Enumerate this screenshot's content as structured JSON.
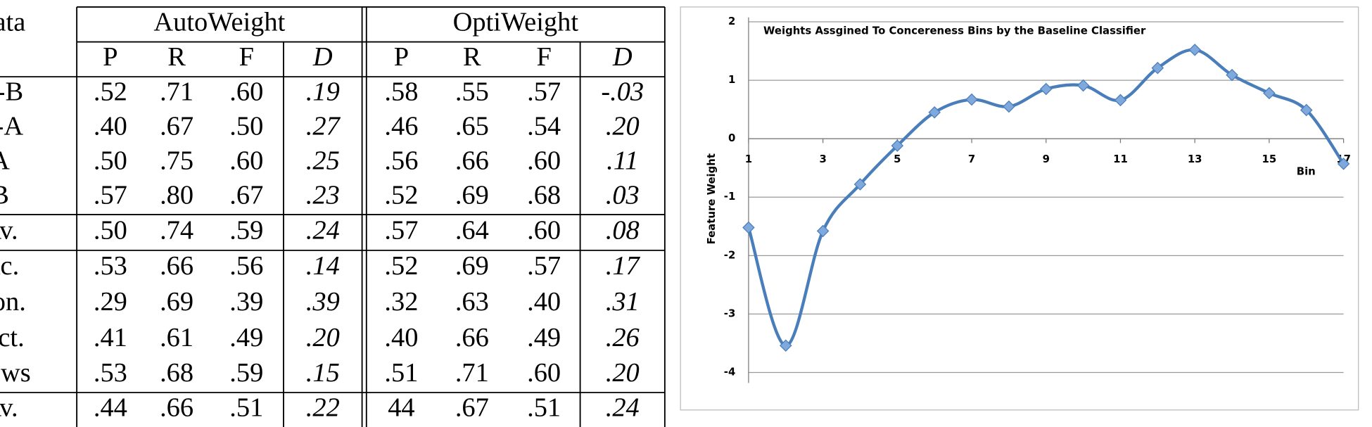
{
  "table": {
    "corner": "Data",
    "groups": [
      "AutoWeight",
      "OptiWeight"
    ],
    "subheaders": [
      "P",
      "R",
      "F",
      "D",
      "P",
      "R",
      "F",
      "D"
    ],
    "rows": [
      [
        "A-B",
        ".52",
        ".71",
        ".60",
        ".19",
        ".58",
        ".55",
        ".57",
        "-.03"
      ],
      [
        "B-A",
        ".40",
        ".67",
        ".50",
        ".27",
        ".46",
        ".65",
        ".54",
        ".20"
      ],
      [
        "A",
        ".50",
        ".75",
        ".60",
        ".25",
        ".56",
        ".66",
        ".60",
        ".11"
      ],
      [
        "B",
        ".57",
        ".80",
        ".67",
        ".23",
        ".52",
        ".69",
        ".68",
        ".03"
      ],
      [
        "Av.",
        ".50",
        ".74",
        ".59",
        ".24",
        ".57",
        ".64",
        ".60",
        ".08"
      ],
      [
        "Ac.",
        ".53",
        ".66",
        ".56",
        ".14",
        ".52",
        ".69",
        ".57",
        ".17"
      ],
      [
        "Con.",
        ".29",
        ".69",
        ".39",
        ".39",
        ".32",
        ".63",
        ".40",
        ".31"
      ],
      [
        "Fict.",
        ".41",
        ".61",
        ".49",
        ".20",
        ".40",
        ".66",
        ".49",
        ".26"
      ],
      [
        "News",
        ".53",
        ".68",
        ".59",
        ".15",
        ".51",
        ".71",
        ".60",
        ".20"
      ],
      [
        "Av.",
        ".44",
        ".66",
        ".51",
        ".22",
        "44",
        ".67",
        ".51",
        ".24"
      ]
    ]
  },
  "chart_data": {
    "type": "line",
    "title": "Weights Assgined To Concereness Bins by the Baseline Classifier",
    "x_label": "Bin",
    "y_label": "Feature Weight",
    "x": [
      1,
      2,
      3,
      4,
      5,
      6,
      7,
      8,
      9,
      10,
      11,
      12,
      13,
      14,
      15,
      16,
      17
    ],
    "values": [
      -1.52,
      -3.54,
      -1.58,
      -0.78,
      -0.12,
      0.45,
      0.67,
      0.55,
      0.85,
      0.91,
      0.66,
      1.21,
      1.52,
      1.09,
      0.78,
      0.49,
      -0.43
    ],
    "color": "#4a7ebb",
    "xlim": [
      1,
      17
    ],
    "xticks": [
      1,
      3,
      5,
      7,
      9,
      11,
      13,
      15,
      17
    ],
    "ylim": [
      -4,
      2
    ],
    "yticks": [
      -4,
      -3,
      -2,
      -1,
      0,
      1,
      2
    ],
    "grid": true
  }
}
